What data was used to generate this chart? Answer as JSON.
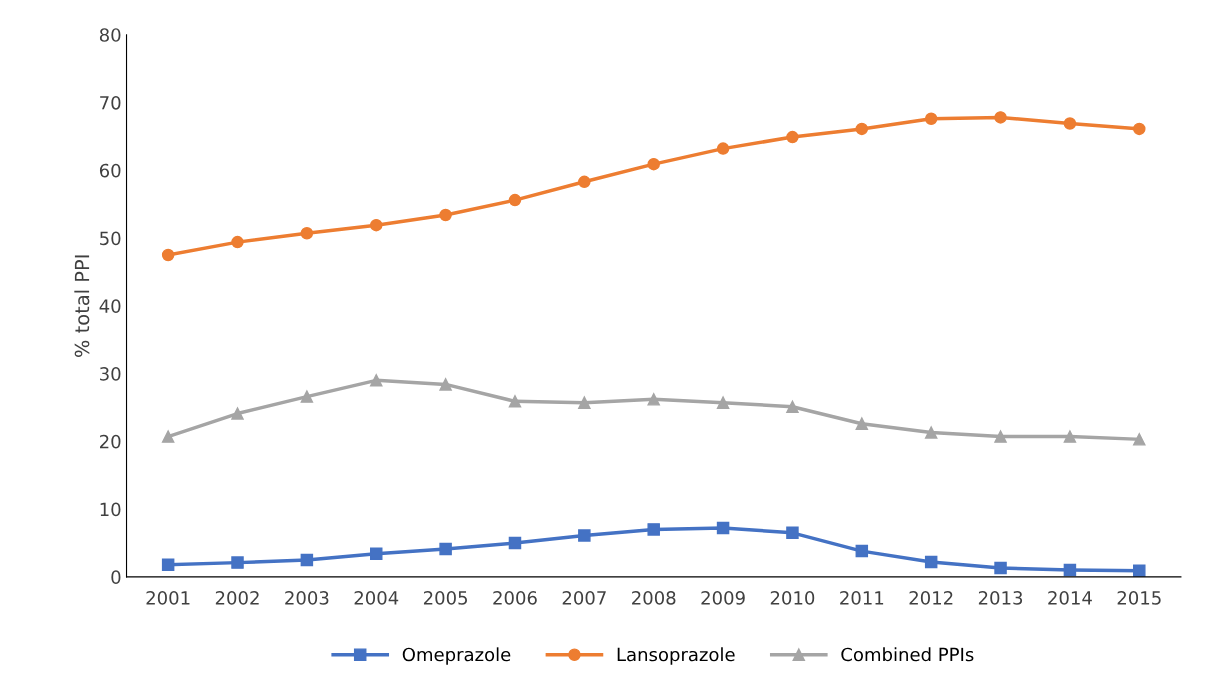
{
  "chart_data": {
    "type": "line",
    "ylabel": "% total PPI",
    "categories": [
      "2001",
      "2002",
      "2003",
      "2004",
      "2005",
      "2006",
      "2007",
      "2008",
      "2009",
      "2010",
      "2011",
      "2012",
      "2013",
      "2014",
      "2015"
    ],
    "series": [
      {
        "name": "Omeprazole",
        "color": "#4472c4",
        "marker": "square",
        "values": [
          1.8,
          2.1,
          2.5,
          3.4,
          4.1,
          5.0,
          6.1,
          7.0,
          7.2,
          6.5,
          3.8,
          2.2,
          1.3,
          1.0,
          0.9
        ]
      },
      {
        "name": "Lansoprazole",
        "color": "#ed7d31",
        "marker": "circle",
        "values": [
          47.5,
          49.4,
          50.7,
          51.9,
          53.4,
          55.6,
          58.3,
          60.9,
          63.2,
          64.9,
          66.1,
          67.6,
          67.8,
          66.9,
          66.1
        ]
      },
      {
        "name": "Combined PPIs",
        "color": "#a5a5a5",
        "marker": "triangle",
        "values": [
          20.7,
          24.1,
          26.6,
          29.0,
          28.4,
          25.9,
          25.7,
          26.2,
          25.7,
          25.1,
          22.6,
          21.3,
          20.7,
          20.7,
          20.3
        ]
      }
    ],
    "ylim": [
      0,
      80
    ],
    "yticks": [
      0,
      10,
      20,
      30,
      40,
      50,
      60,
      70,
      80
    ],
    "grid": false,
    "legend": "bottom",
    "line_style": "solid"
  }
}
